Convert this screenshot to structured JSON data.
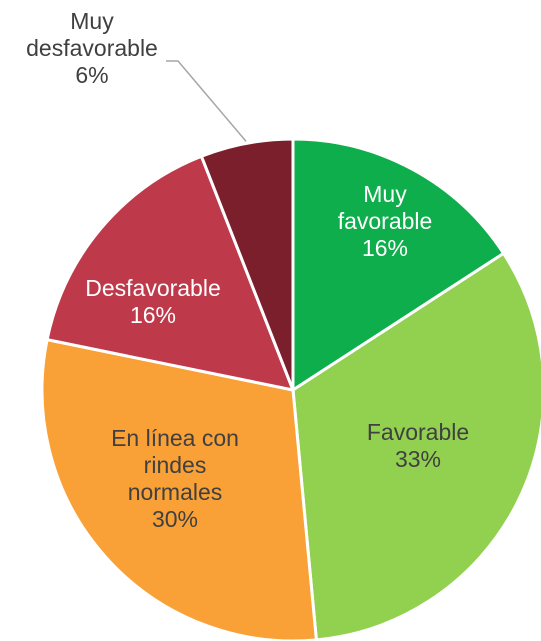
{
  "chart_data": {
    "type": "pie",
    "categories": [
      "Muy favorable",
      "Favorable",
      "En línea con rindes normales",
      "Desfavorable",
      "Muy desfavorable"
    ],
    "values": [
      16,
      33,
      30,
      16,
      6
    ],
    "value_labels": [
      "16%",
      "33%",
      "30%",
      "16%",
      "6%"
    ],
    "colors": [
      "#0dae4b",
      "#92d050",
      "#f9a136",
      "#be3a4b",
      "#7b1f2d"
    ],
    "label_colors": [
      "#ffffff",
      "#404040",
      "#404040",
      "#ffffff",
      "#404040"
    ],
    "label_lines": [
      [
        "Muy",
        "favorable"
      ],
      [
        "Favorable"
      ],
      [
        "En línea con",
        "rindes",
        "normales"
      ],
      [
        "Desfavorable"
      ],
      [
        "Muy",
        "desfavorable"
      ]
    ],
    "legend": "none"
  }
}
